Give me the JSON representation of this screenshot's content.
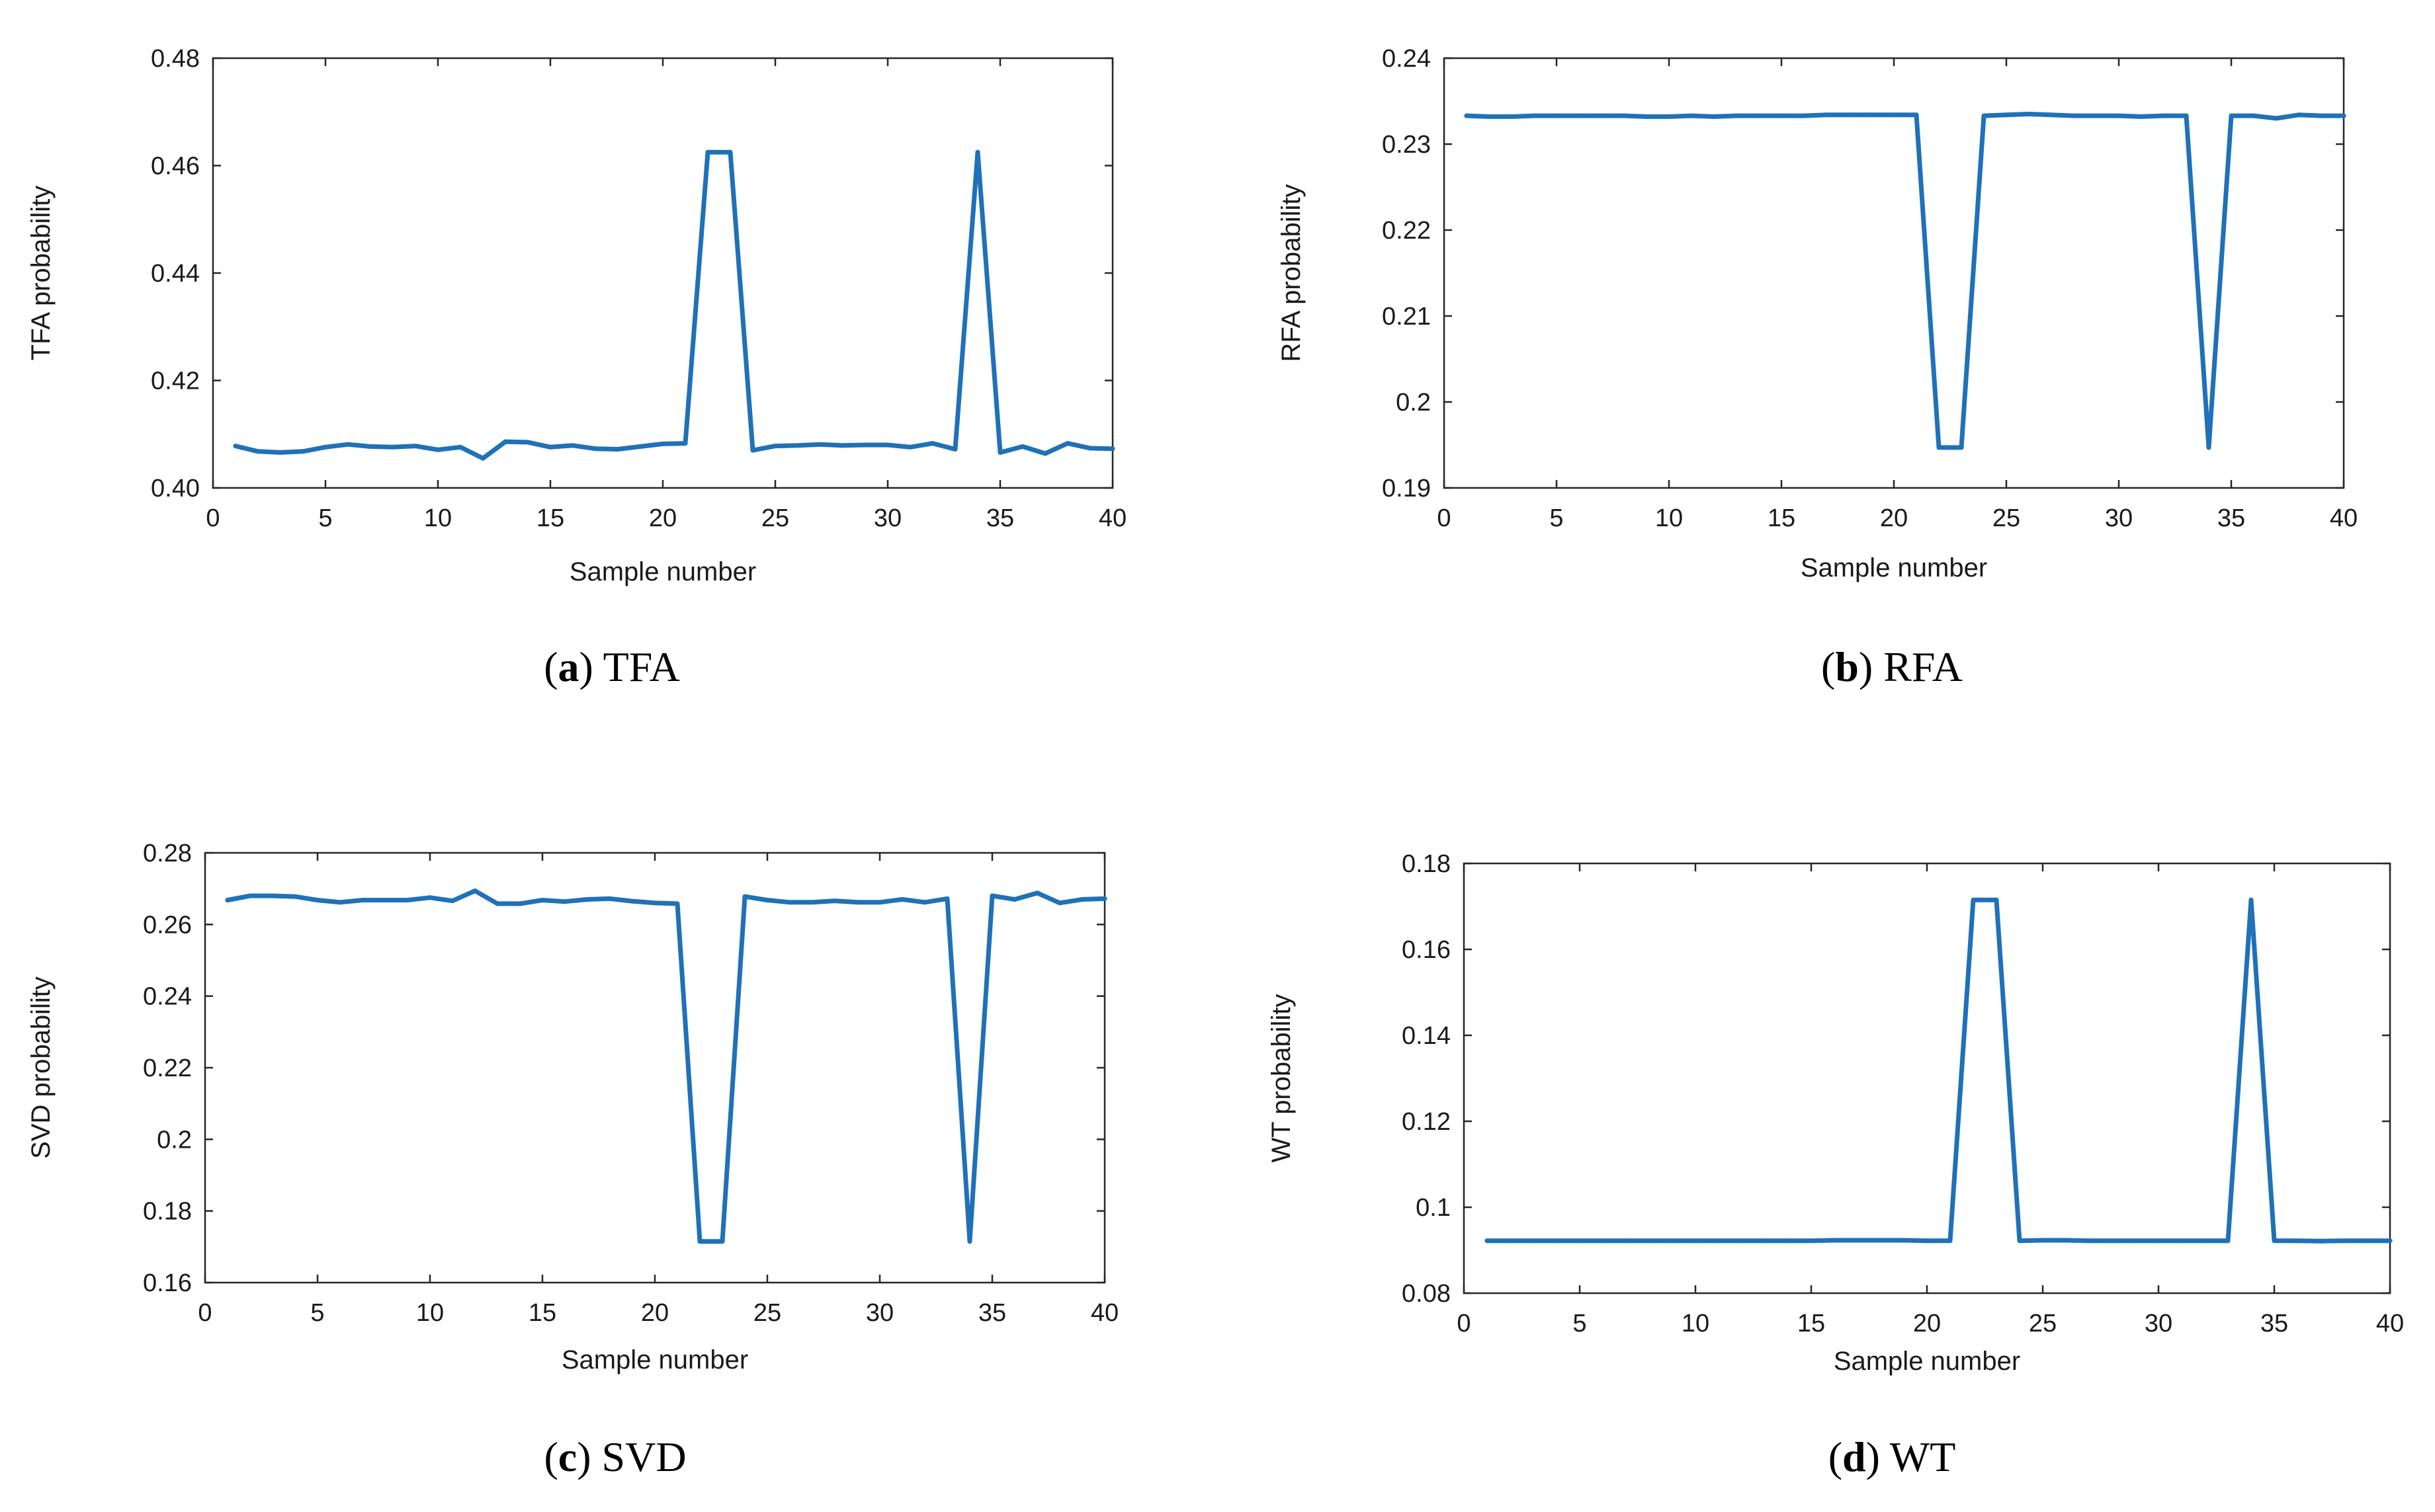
{
  "figure": {
    "line_color": "#1f71b8",
    "panels_count": 4
  },
  "chart_data": [
    {
      "type": "line",
      "caption_letter": "a",
      "caption_text": "TFA",
      "xlabel": "Sample number",
      "ylabel": "TFA probability",
      "xlim": [
        0,
        40
      ],
      "ylim": [
        0.4,
        0.48
      ],
      "xticks": [
        0,
        5,
        10,
        15,
        20,
        25,
        30,
        35,
        40
      ],
      "xtick_labels": [
        "0",
        "5",
        "10",
        "15",
        "20",
        "25",
        "30",
        "35",
        "40"
      ],
      "yticks": [
        0.4,
        0.42,
        0.44,
        0.46,
        0.48
      ],
      "ytick_labels": [
        "0.40",
        "0.42",
        "0.44",
        "0.46",
        "0.48"
      ],
      "series": [
        {
          "name": "TFA probability",
          "x": [
            1,
            2,
            3,
            4,
            5,
            6,
            7,
            8,
            9,
            10,
            11,
            12,
            13,
            14,
            15,
            16,
            17,
            18,
            19,
            20,
            21,
            22,
            23,
            24,
            25,
            26,
            27,
            28,
            29,
            30,
            31,
            32,
            33,
            34,
            35,
            36,
            37,
            38,
            39,
            40
          ],
          "values": [
            0.4078,
            0.4068,
            0.4066,
            0.4068,
            0.4076,
            0.4081,
            0.4077,
            0.4076,
            0.4078,
            0.4071,
            0.4076,
            0.4055,
            0.4086,
            0.4085,
            0.4076,
            0.4079,
            0.4073,
            0.4072,
            0.4077,
            0.4082,
            0.4083,
            0.4625,
            0.4625,
            0.407,
            0.4078,
            0.4079,
            0.4081,
            0.4079,
            0.408,
            0.408,
            0.4076,
            0.4083,
            0.4072,
            0.4625,
            0.4066,
            0.4077,
            0.4064,
            0.4083,
            0.4074,
            0.4073
          ]
        }
      ]
    },
    {
      "type": "line",
      "caption_letter": "b",
      "caption_text": "RFA",
      "xlabel": "Sample number",
      "ylabel": "RFA probability",
      "xlim": [
        0,
        40
      ],
      "ylim": [
        0.19,
        0.24
      ],
      "xticks": [
        0,
        5,
        10,
        15,
        20,
        25,
        30,
        35,
        40
      ],
      "xtick_labels": [
        "0",
        "5",
        "10",
        "15",
        "20",
        "25",
        "30",
        "35",
        "40"
      ],
      "yticks": [
        0.19,
        0.2,
        0.21,
        0.22,
        0.23,
        0.24
      ],
      "ytick_labels": [
        "0.19",
        "0.2",
        "0.21",
        "0.22",
        "0.23",
        "0.24"
      ],
      "series": [
        {
          "name": "RFA probability",
          "x": [
            1,
            2,
            3,
            4,
            5,
            6,
            7,
            8,
            9,
            10,
            11,
            12,
            13,
            14,
            15,
            16,
            17,
            18,
            19,
            20,
            21,
            22,
            23,
            24,
            25,
            26,
            27,
            28,
            29,
            30,
            31,
            32,
            33,
            34,
            35,
            36,
            37,
            38,
            39,
            40
          ],
          "values": [
            0.2333,
            0.2332,
            0.2332,
            0.2333,
            0.2333,
            0.2333,
            0.2333,
            0.2333,
            0.2332,
            0.2332,
            0.2333,
            0.2332,
            0.2333,
            0.2333,
            0.2333,
            0.2333,
            0.2334,
            0.2334,
            0.2334,
            0.2334,
            0.2334,
            0.1947,
            0.1947,
            0.2333,
            0.2334,
            0.2335,
            0.2334,
            0.2333,
            0.2333,
            0.2333,
            0.2332,
            0.2333,
            0.2333,
            0.1947,
            0.2333,
            0.2333,
            0.233,
            0.2334,
            0.2333,
            0.2333
          ]
        }
      ]
    },
    {
      "type": "line",
      "caption_letter": "c",
      "caption_text": "SVD",
      "xlabel": "Sample number",
      "ylabel": "SVD probability",
      "xlim": [
        0,
        40
      ],
      "ylim": [
        0.16,
        0.28
      ],
      "xticks": [
        0,
        5,
        10,
        15,
        20,
        25,
        30,
        35,
        40
      ],
      "xtick_labels": [
        "0",
        "5",
        "10",
        "15",
        "20",
        "25",
        "30",
        "35",
        "40"
      ],
      "yticks": [
        0.16,
        0.18,
        0.2,
        0.22,
        0.24,
        0.26,
        0.28
      ],
      "ytick_labels": [
        "0.16",
        "0.18",
        "0.2",
        "0.22",
        "0.24",
        "0.26",
        "0.28"
      ],
      "series": [
        {
          "name": "SVD probability",
          "x": [
            1,
            2,
            3,
            4,
            5,
            6,
            7,
            8,
            9,
            10,
            11,
            12,
            13,
            14,
            15,
            16,
            17,
            18,
            19,
            20,
            21,
            22,
            23,
            24,
            25,
            26,
            27,
            28,
            29,
            30,
            31,
            32,
            33,
            34,
            35,
            36,
            37,
            38,
            39,
            40
          ],
          "values": [
            0.2668,
            0.268,
            0.268,
            0.2678,
            0.2668,
            0.2662,
            0.2668,
            0.2668,
            0.2668,
            0.2675,
            0.2666,
            0.2694,
            0.2658,
            0.2658,
            0.2668,
            0.2664,
            0.267,
            0.2672,
            0.2665,
            0.266,
            0.2658,
            0.1715,
            0.1715,
            0.2678,
            0.2668,
            0.2662,
            0.2662,
            0.2666,
            0.2662,
            0.2662,
            0.267,
            0.2662,
            0.2672,
            0.1715,
            0.268,
            0.267,
            0.2688,
            0.266,
            0.267,
            0.2672
          ]
        }
      ]
    },
    {
      "type": "line",
      "caption_letter": "d",
      "caption_text": "WT",
      "xlabel": "Sample number",
      "ylabel": "WT probability",
      "xlim": [
        0,
        40
      ],
      "ylim": [
        0.08,
        0.18
      ],
      "xticks": [
        0,
        5,
        10,
        15,
        20,
        25,
        30,
        35,
        40
      ],
      "xtick_labels": [
        "0",
        "5",
        "10",
        "15",
        "20",
        "25",
        "30",
        "35",
        "40"
      ],
      "yticks": [
        0.08,
        0.1,
        0.12,
        0.14,
        0.16,
        0.18
      ],
      "ytick_labels": [
        "0.08",
        "0.1",
        "0.12",
        "0.14",
        "0.16",
        "0.18"
      ],
      "series": [
        {
          "name": "WT probability",
          "x": [
            1,
            2,
            3,
            4,
            5,
            6,
            7,
            8,
            9,
            10,
            11,
            12,
            13,
            14,
            15,
            16,
            17,
            18,
            19,
            20,
            21,
            22,
            23,
            24,
            25,
            26,
            27,
            28,
            29,
            30,
            31,
            32,
            33,
            34,
            35,
            36,
            37,
            38,
            39,
            40
          ],
          "values": [
            0.0922,
            0.0922,
            0.0922,
            0.0922,
            0.0922,
            0.0922,
            0.0922,
            0.0922,
            0.0922,
            0.0922,
            0.0922,
            0.0922,
            0.0922,
            0.0922,
            0.0922,
            0.0923,
            0.0923,
            0.0923,
            0.0923,
            0.0922,
            0.0922,
            0.1715,
            0.1715,
            0.0922,
            0.0923,
            0.0923,
            0.0922,
            0.0922,
            0.0922,
            0.0922,
            0.0922,
            0.0922,
            0.0922,
            0.1715,
            0.0922,
            0.0922,
            0.0921,
            0.0922,
            0.0922,
            0.0922
          ]
        }
      ]
    }
  ]
}
